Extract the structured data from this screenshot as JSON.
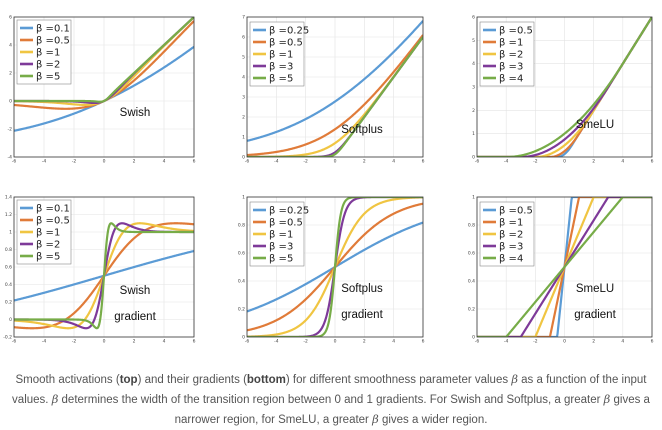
{
  "chart_data": [
    {
      "type": "line",
      "func": "swish",
      "xlim": [
        -6,
        6
      ],
      "ylim": [
        -4,
        6
      ],
      "xticks": [
        -6,
        -4,
        -2,
        0,
        2,
        4,
        6
      ],
      "xtick_labels": [
        "-6",
        "-4",
        "-2",
        "0",
        "2",
        "4",
        "6"
      ],
      "yticks": [
        -4,
        -2,
        0,
        2,
        4,
        6
      ],
      "ytick_labels": [
        "-4",
        "-2",
        "0",
        "2",
        "4",
        "6"
      ],
      "annotation": "Swish",
      "series": [
        {
          "name": "β =0.1",
          "beta": 0.1,
          "color": "#5b9bd5"
        },
        {
          "name": "β =0.5",
          "beta": 0.5,
          "color": "#e07b39"
        },
        {
          "name": "β =1",
          "beta": 1,
          "color": "#f0c542"
        },
        {
          "name": "β =2",
          "beta": 2,
          "color": "#7e3a99"
        },
        {
          "name": "β =5",
          "beta": 5,
          "color": "#77ac48"
        }
      ]
    },
    {
      "type": "line",
      "func": "softplus",
      "xlim": [
        -6,
        6
      ],
      "ylim": [
        0,
        7
      ],
      "xticks": [
        -6,
        -4,
        -2,
        0,
        2,
        4,
        6
      ],
      "xtick_labels": [
        "-6",
        "-4",
        "-2",
        "0",
        "2",
        "4",
        "6"
      ],
      "yticks": [
        0,
        1,
        2,
        3,
        4,
        5,
        6,
        7
      ],
      "ytick_labels": [
        "0",
        "1",
        "2",
        "3",
        "4",
        "5",
        "6",
        "7"
      ],
      "annotation": "Softplus",
      "series": [
        {
          "name": "β =0.25",
          "beta": 0.25,
          "color": "#5b9bd5"
        },
        {
          "name": "β =0.5",
          "beta": 0.5,
          "color": "#e07b39"
        },
        {
          "name": "β =1",
          "beta": 1,
          "color": "#f0c542"
        },
        {
          "name": "β =3",
          "beta": 3,
          "color": "#7e3a99"
        },
        {
          "name": "β =5",
          "beta": 5,
          "color": "#77ac48"
        }
      ]
    },
    {
      "type": "line",
      "func": "smelu",
      "xlim": [
        -6,
        6
      ],
      "ylim": [
        0,
        6
      ],
      "xticks": [
        -6,
        -4,
        -2,
        0,
        2,
        4,
        6
      ],
      "xtick_labels": [
        "-6",
        "-4",
        "-2",
        "0",
        "2",
        "4",
        "6"
      ],
      "yticks": [
        0,
        1,
        2,
        3,
        4,
        5,
        6
      ],
      "ytick_labels": [
        "0",
        "1",
        "2",
        "3",
        "4",
        "5",
        "6"
      ],
      "annotation": "SmeLU",
      "series": [
        {
          "name": "β =0.5",
          "beta": 0.5,
          "color": "#5b9bd5"
        },
        {
          "name": "β =1",
          "beta": 1,
          "color": "#e07b39"
        },
        {
          "name": "β =2",
          "beta": 2,
          "color": "#f0c542"
        },
        {
          "name": "β =3",
          "beta": 3,
          "color": "#7e3a99"
        },
        {
          "name": "β =4",
          "beta": 4,
          "color": "#77ac48"
        }
      ]
    },
    {
      "type": "line",
      "func": "swish_grad",
      "xlim": [
        -6,
        6
      ],
      "ylim": [
        -0.2,
        1.4
      ],
      "xticks": [
        -6,
        -4,
        -2,
        0,
        2,
        4,
        6
      ],
      "xtick_labels": [
        "-6",
        "-4",
        "-2",
        "0",
        "2",
        "4",
        "6"
      ],
      "yticks": [
        -0.2,
        0,
        0.2,
        0.4,
        0.6,
        0.8,
        1,
        1.2,
        1.4
      ],
      "ytick_labels": [
        "-0.2",
        "0",
        "0.2",
        "0.4",
        "0.6",
        "0.8",
        "1",
        "1.2",
        "1.4"
      ],
      "annotation": "Swish\ngradient",
      "series": [
        {
          "name": "β =0.1",
          "beta": 0.1,
          "color": "#5b9bd5"
        },
        {
          "name": "β =0.5",
          "beta": 0.5,
          "color": "#e07b39"
        },
        {
          "name": "β =1",
          "beta": 1,
          "color": "#f0c542"
        },
        {
          "name": "β =2",
          "beta": 2,
          "color": "#7e3a99"
        },
        {
          "name": "β =5",
          "beta": 5,
          "color": "#77ac48"
        }
      ]
    },
    {
      "type": "line",
      "func": "softplus_grad",
      "xlim": [
        -6,
        6
      ],
      "ylim": [
        0,
        1
      ],
      "xticks": [
        -6,
        -4,
        -2,
        0,
        2,
        4,
        6
      ],
      "xtick_labels": [
        "-6",
        "-4",
        "-2",
        "0",
        "2",
        "4",
        "6"
      ],
      "yticks": [
        0,
        0.2,
        0.4,
        0.6,
        0.8,
        1
      ],
      "ytick_labels": [
        "0",
        "0.2",
        "0.4",
        "0.6",
        "0.8",
        "1"
      ],
      "annotation": "Softplus\ngradient",
      "series": [
        {
          "name": "β =0.25",
          "beta": 0.25,
          "color": "#5b9bd5"
        },
        {
          "name": "β =0.5",
          "beta": 0.5,
          "color": "#e07b39"
        },
        {
          "name": "β =1",
          "beta": 1,
          "color": "#f0c542"
        },
        {
          "name": "β =3",
          "beta": 3,
          "color": "#7e3a99"
        },
        {
          "name": "β =5",
          "beta": 5,
          "color": "#77ac48"
        }
      ]
    },
    {
      "type": "line",
      "func": "smelu_grad",
      "xlim": [
        -6,
        6
      ],
      "ylim": [
        0,
        1
      ],
      "xticks": [
        -6,
        -4,
        -2,
        0,
        2,
        4,
        6
      ],
      "xtick_labels": [
        "-6",
        "-4",
        "-2",
        "0",
        "2",
        "4",
        "6"
      ],
      "yticks": [
        0,
        0.2,
        0.4,
        0.6,
        0.8,
        1
      ],
      "ytick_labels": [
        "0",
        "0.2",
        "0.4",
        "0.6",
        "0.8",
        "1"
      ],
      "annotation": "SmeLU\ngradient",
      "series": [
        {
          "name": "β =0.5",
          "beta": 0.5,
          "color": "#5b9bd5"
        },
        {
          "name": "β =1",
          "beta": 1,
          "color": "#e07b39"
        },
        {
          "name": "β =2",
          "beta": 2,
          "color": "#f0c542"
        },
        {
          "name": "β =3",
          "beta": 3,
          "color": "#7e3a99"
        },
        {
          "name": "β =4",
          "beta": 4,
          "color": "#77ac48"
        }
      ]
    }
  ],
  "caption": {
    "p1": "Smooth activations (",
    "b1": "top",
    "p2": ") and their gradients (",
    "b2": "bottom",
    "p3": ") for different smoothness parameter values ",
    "beta_sym": "β",
    "p4": " as a function of the input values. ",
    "p5": " determines the width of the transition region between 0 and 1 gradients. For Swish and Softplus, a greater ",
    "p6": " gives a narrower region, for SmeLU, a greater ",
    "p7": " gives a wider region."
  }
}
